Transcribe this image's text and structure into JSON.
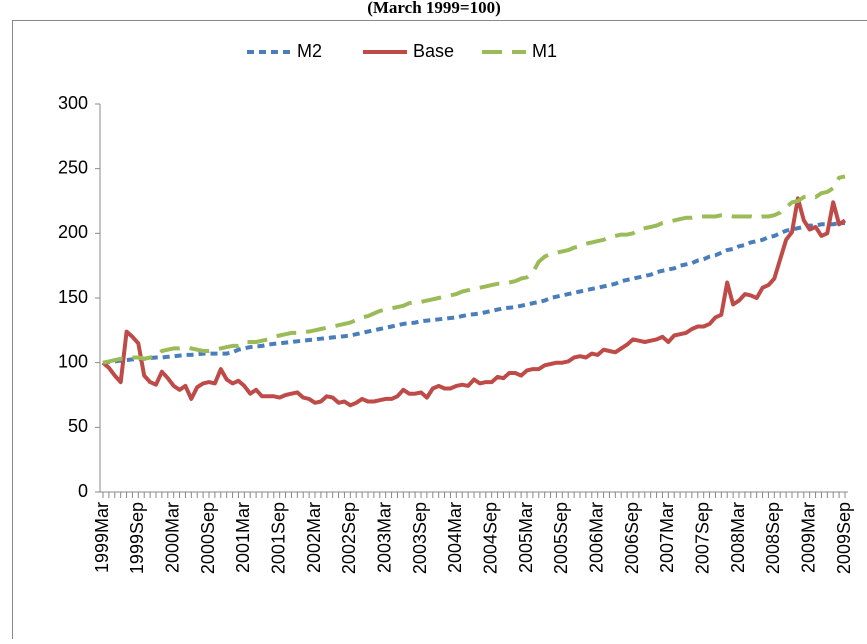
{
  "chart_data": {
    "type": "line",
    "title": "(March 1999=100)",
    "categories": [
      "1999Mar",
      null,
      null,
      null,
      null,
      null,
      "1999Sep",
      null,
      null,
      null,
      null,
      null,
      "2000Mar",
      null,
      null,
      null,
      null,
      null,
      "2000Sep",
      null,
      null,
      null,
      null,
      null,
      "2001Mar",
      null,
      null,
      null,
      null,
      null,
      "2001Sep",
      null,
      null,
      null,
      null,
      null,
      "2002Mar",
      null,
      null,
      null,
      null,
      null,
      "2002Sep",
      null,
      null,
      null,
      null,
      null,
      "2003Mar",
      null,
      null,
      null,
      null,
      null,
      "2003Sep",
      null,
      null,
      null,
      null,
      null,
      "2004Mar",
      null,
      null,
      null,
      null,
      null,
      "2004Sep",
      null,
      null,
      null,
      null,
      null,
      "2005Mar",
      null,
      null,
      null,
      null,
      null,
      "2005Sep",
      null,
      null,
      null,
      null,
      null,
      "2006Mar",
      null,
      null,
      null,
      null,
      null,
      "2006Sep",
      null,
      null,
      null,
      null,
      null,
      "2007Mar",
      null,
      null,
      null,
      null,
      null,
      "2007Sep",
      null,
      null,
      null,
      null,
      null,
      "2008Mar",
      null,
      null,
      null,
      null,
      null,
      "2008Sep",
      null,
      null,
      null,
      null,
      null,
      "2009Mar",
      null,
      null,
      null,
      null,
      null,
      "2009Sep"
    ],
    "series": [
      {
        "name": "M2",
        "color": "#4a7ebb",
        "dash": "short",
        "values": [
          100,
          100.5,
          101,
          101.5,
          102,
          102.5,
          103,
          103,
          103.5,
          104,
          104,
          104.5,
          105,
          105.5,
          106,
          106,
          106.5,
          107,
          107,
          107,
          107,
          107,
          108,
          110,
          111,
          112,
          112.5,
          113,
          114,
          114.5,
          115,
          115.5,
          116,
          116.5,
          117,
          117.5,
          118,
          118.5,
          119,
          119.5,
          120,
          120.5,
          121,
          122,
          123,
          124,
          125,
          126,
          127,
          128,
          129,
          130,
          130.5,
          131,
          132,
          132.5,
          133,
          133.5,
          134,
          134.5,
          135,
          136,
          137,
          137.5,
          138,
          139,
          140,
          141,
          142,
          142.5,
          143,
          144,
          145,
          146,
          147,
          148,
          150,
          151,
          152,
          153,
          154,
          155,
          156,
          157,
          158,
          159,
          160,
          161,
          163,
          164,
          165,
          166,
          167,
          168,
          170,
          171,
          172,
          173,
          175,
          176,
          177,
          179,
          180,
          182,
          183,
          185,
          187,
          188,
          190,
          191,
          193,
          194,
          195,
          197,
          198,
          200,
          202,
          203,
          204,
          205,
          206,
          206,
          207,
          207,
          207,
          208,
          208
        ]
      },
      {
        "name": "Base",
        "color": "#be4b48",
        "dash": "solid",
        "values": [
          100,
          96,
          90,
          85,
          124,
          120,
          115,
          90,
          85,
          83,
          93,
          88,
          82,
          79,
          82,
          72,
          81,
          84,
          85,
          84,
          95,
          87,
          84,
          86,
          82,
          76,
          79,
          74,
          74,
          74,
          73,
          75,
          76,
          77,
          73,
          72,
          69,
          70,
          74,
          73,
          69,
          70,
          67,
          69,
          72,
          70,
          70,
          71,
          72,
          72,
          74,
          79,
          76,
          76,
          77,
          73,
          80,
          82,
          80,
          80,
          82,
          83,
          82,
          87,
          84,
          85,
          85,
          89,
          88,
          92,
          92,
          90,
          94,
          95,
          95,
          98,
          99,
          100,
          100,
          101,
          104,
          105,
          104,
          107,
          106,
          110,
          109,
          108,
          111,
          114,
          118,
          117,
          116,
          117,
          118,
          120,
          116,
          121,
          122,
          123,
          126,
          128,
          128,
          130,
          135,
          137,
          162,
          145,
          148,
          153,
          152,
          150,
          158,
          160,
          165,
          180,
          195,
          201,
          227,
          210,
          203,
          205,
          198,
          200,
          224,
          207,
          210
        ]
      },
      {
        "name": "M1",
        "color": "#9bbb59",
        "dash": "long",
        "values": [
          100,
          101,
          102,
          103,
          103,
          104,
          104,
          103,
          104,
          105,
          109,
          110,
          111,
          111,
          112,
          111,
          110,
          109,
          109,
          110,
          111,
          112,
          113,
          113,
          116,
          116,
          116,
          117,
          118,
          120,
          121,
          122,
          123,
          123,
          124,
          124,
          125,
          126,
          127,
          128,
          129,
          130,
          131,
          133,
          135,
          136,
          138,
          140,
          141,
          142,
          143,
          144,
          146,
          147,
          147,
          148,
          149,
          150,
          151,
          152,
          153,
          155,
          156,
          157,
          158,
          159,
          160,
          161,
          161,
          162,
          163,
          165,
          166,
          170,
          178,
          182,
          184,
          185,
          186,
          187,
          189,
          190,
          192,
          193,
          194,
          195,
          197,
          198,
          199,
          199,
          200,
          203,
          204,
          205,
          206,
          208,
          209,
          210,
          211,
          212,
          212,
          213,
          213,
          213,
          213,
          214,
          214,
          213,
          213,
          213,
          213,
          212,
          213,
          213,
          214,
          216,
          220,
          224,
          225,
          228,
          229,
          228,
          231,
          232,
          235,
          243,
          244
        ]
      }
    ],
    "ylim": [
      0,
      300
    ],
    "yticks": [
      0,
      50,
      100,
      150,
      200,
      250,
      300
    ],
    "grid": false,
    "legend": "top"
  }
}
